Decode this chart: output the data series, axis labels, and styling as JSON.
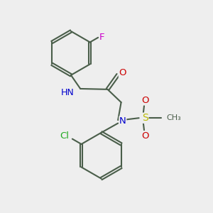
{
  "bg_color": "#eeeeee",
  "bond_color": "#4a5e4a",
  "bond_width": 1.5,
  "atom_colors": {
    "N": "#0000cc",
    "O": "#cc0000",
    "F": "#cc00cc",
    "Cl": "#22aa22",
    "S": "#bbbb00",
    "C": "#4a5e4a",
    "H": "#4a5e4a"
  },
  "font_size": 8.5,
  "figsize": [
    3.0,
    3.0
  ],
  "dpi": 100
}
